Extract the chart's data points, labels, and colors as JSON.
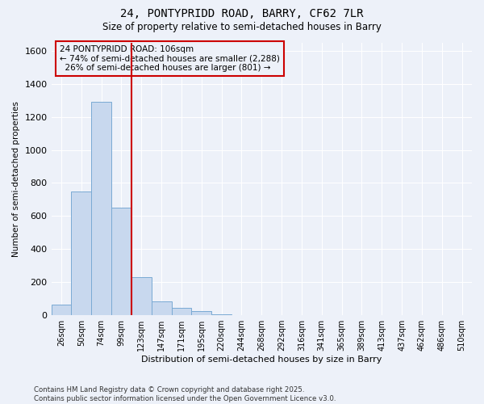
{
  "title_line1": "24, PONTYPRIDD ROAD, BARRY, CF62 7LR",
  "title_line2": "Size of property relative to semi-detached houses in Barry",
  "xlabel": "Distribution of semi-detached houses by size in Barry",
  "ylabel": "Number of semi-detached properties",
  "categories": [
    "26sqm",
    "50sqm",
    "74sqm",
    "99sqm",
    "123sqm",
    "147sqm",
    "171sqm",
    "195sqm",
    "220sqm",
    "244sqm",
    "268sqm",
    "292sqm",
    "316sqm",
    "341sqm",
    "365sqm",
    "389sqm",
    "413sqm",
    "437sqm",
    "462sqm",
    "486sqm",
    "510sqm"
  ],
  "values": [
    65,
    750,
    1290,
    650,
    230,
    85,
    45,
    25,
    5,
    0,
    0,
    0,
    0,
    0,
    0,
    0,
    0,
    0,
    0,
    0,
    0
  ],
  "bar_color": "#c8d8ee",
  "bar_edge_color": "#7aaad4",
  "vline_x": 3,
  "vline_color": "#cc0000",
  "annotation_text": "24 PONTYPRIDD ROAD: 106sqm\n← 74% of semi-detached houses are smaller (2,288)\n  26% of semi-detached houses are larger (801) →",
  "annotation_box_color": "#cc0000",
  "ylim": [
    0,
    1650
  ],
  "yticks": [
    0,
    200,
    400,
    600,
    800,
    1000,
    1200,
    1400,
    1600
  ],
  "footer_text": "Contains HM Land Registry data © Crown copyright and database right 2025.\nContains public sector information licensed under the Open Government Licence v3.0.",
  "bg_color": "#edf1f9",
  "grid_color": "#ffffff"
}
